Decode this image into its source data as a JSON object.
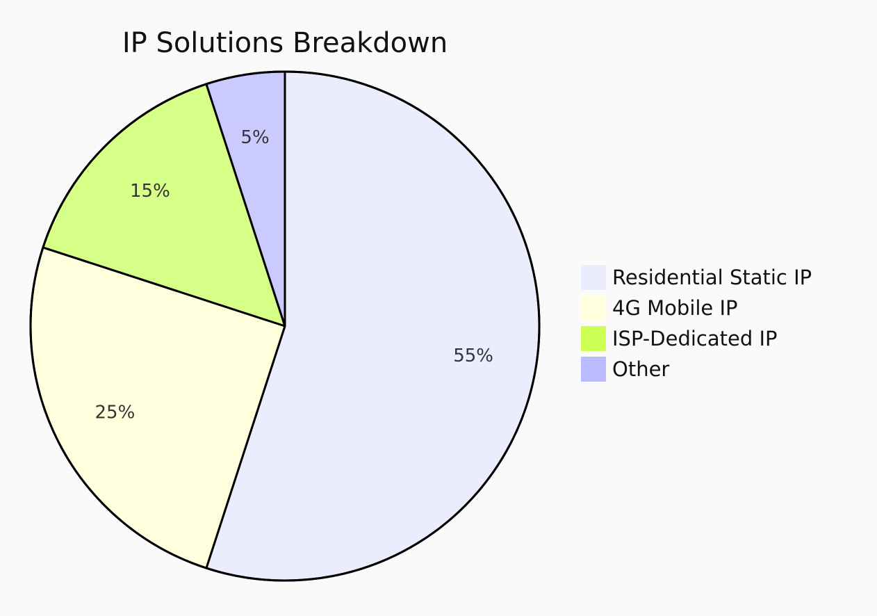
{
  "chart_data": {
    "type": "pie",
    "title": "IP Solutions Breakdown",
    "slices": [
      {
        "name": "Residential Static IP",
        "value": 55,
        "label": "55%",
        "color": "#ECECFF"
      },
      {
        "name": "4G Mobile IP",
        "value": 25,
        "label": "25%",
        "color": "#FFFFDE"
      },
      {
        "name": "ISP-Dedicated IP",
        "value": 15,
        "label": "15%",
        "color": "#D6FF87"
      },
      {
        "name": "Other",
        "value": 5,
        "label": "5%",
        "color": "#CACAFF"
      }
    ],
    "legend_colors": [
      "#ECECFF",
      "#FFFFDE",
      "#CCFF55",
      "#BBBBFF"
    ],
    "legend_position": "right",
    "stroke_color": "#000000"
  }
}
